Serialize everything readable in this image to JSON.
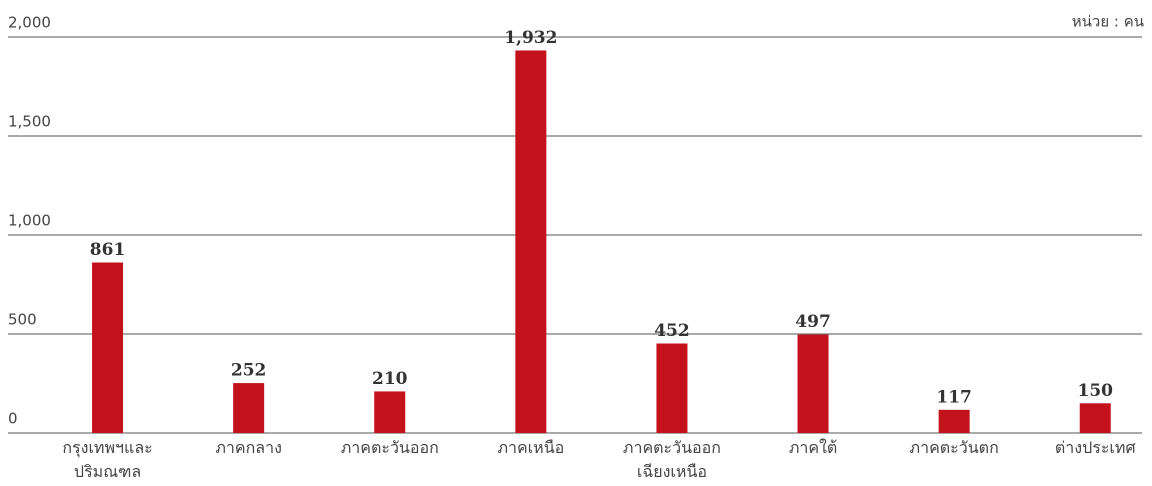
{
  "chart_data": {
    "type": "bar",
    "unit_label": "หน่วย : คน",
    "categories": [
      "กรุงเทพฯและ\nปริมณฑล",
      "ภาคกลาง",
      "ภาคตะวันออก",
      "ภาคเหนือ",
      "ภาคตะวันออก\nเฉียงเหนือ",
      "ภาคใต้",
      "ภาคตะวันตก",
      "ต่างประเทศ"
    ],
    "values": [
      861,
      252,
      210,
      1932,
      452,
      497,
      117,
      150
    ],
    "value_labels": [
      "861",
      "252",
      "210",
      "1,932",
      "452",
      "497",
      "117",
      "150"
    ],
    "color": "#c4121c",
    "ylim": [
      0,
      2000
    ],
    "yticks": [
      0,
      {
        "value": 500,
        "label": "500"
      },
      {
        "value": 1000,
        "label": "1,000"
      },
      {
        "value": 1500,
        "label": "1,500"
      },
      {
        "value": 2000,
        "label": "2,000"
      }
    ],
    "grid": true
  }
}
